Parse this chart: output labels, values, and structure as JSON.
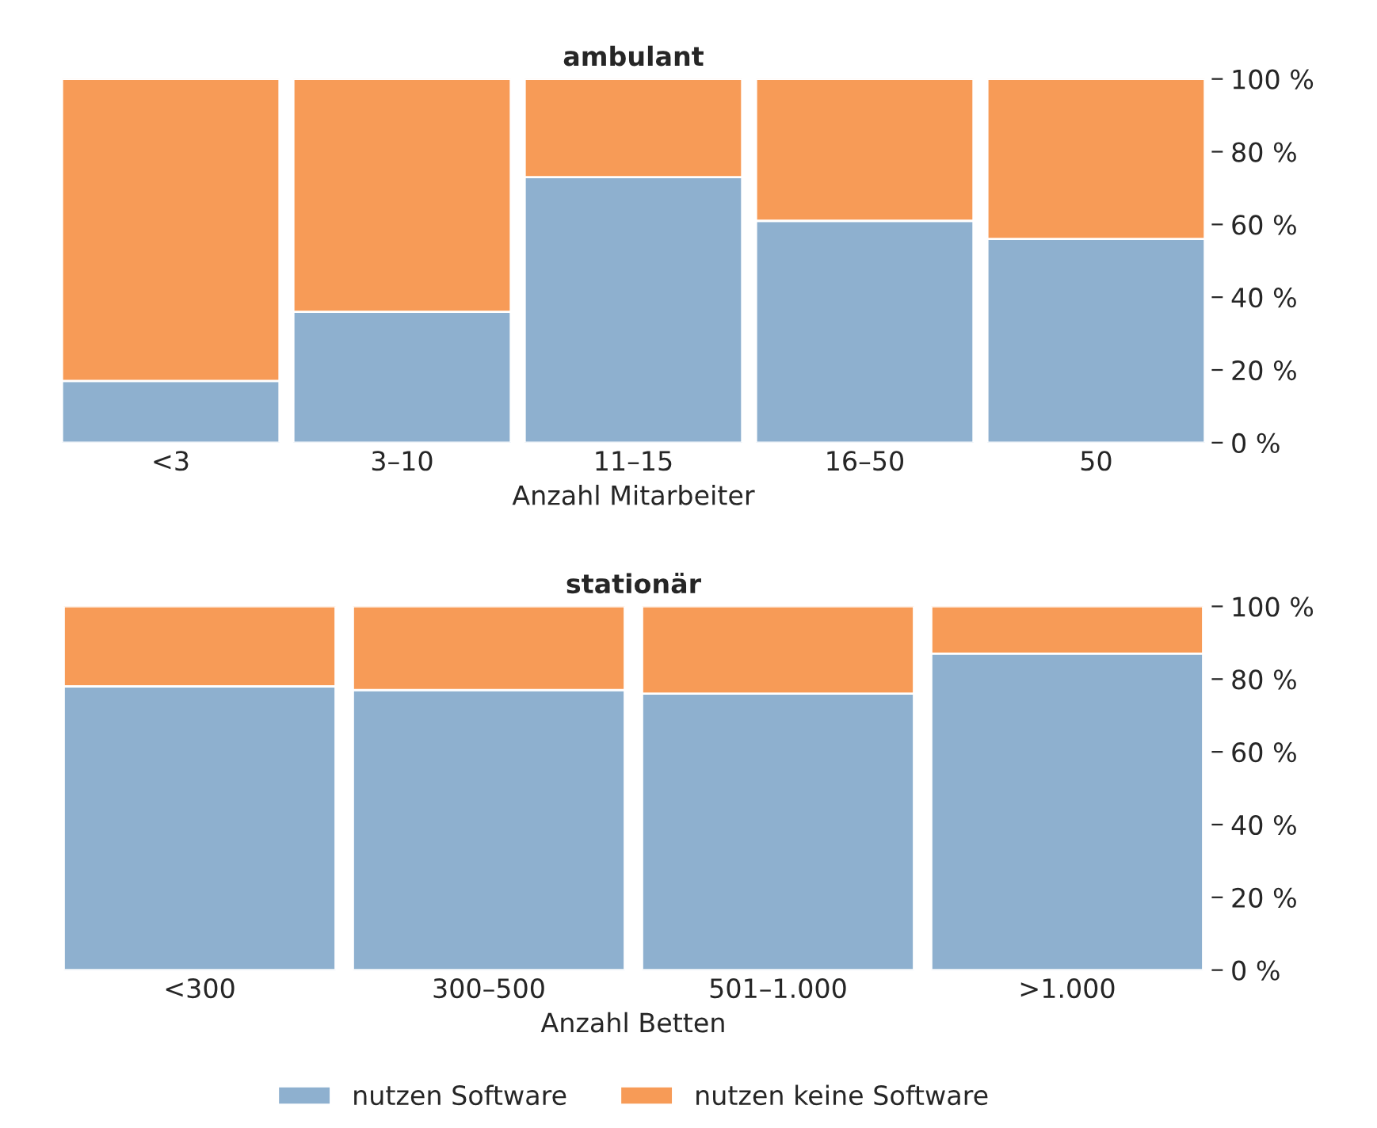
{
  "chart_data": [
    {
      "type": "bar",
      "title": "ambulant",
      "xlabel": "Anzahl Mitarbeiter",
      "categories": [
        "<3",
        "3–10",
        "11–15",
        "16–50",
        "50"
      ],
      "stacked": true,
      "series": [
        {
          "color": "#8eb0cf",
          "values": [
            17,
            36,
            73,
            61,
            56
          ]
        },
        {
          "color": "#f79b57",
          "values": [
            83,
            64,
            27,
            39,
            44
          ]
        }
      ],
      "ylim": [
        0,
        100
      ],
      "yticks": [
        {
          "value": 0,
          "label": "0 %"
        },
        {
          "value": 20,
          "label": "20 %"
        },
        {
          "value": 40,
          "label": "40 %"
        },
        {
          "value": 60,
          "label": "60 %"
        },
        {
          "value": 80,
          "label": "80 %"
        },
        {
          "value": 100,
          "label": "100 %"
        }
      ],
      "grid": false,
      "legend": false
    },
    {
      "type": "bar",
      "title": "stationär",
      "xlabel": "Anzahl Betten",
      "categories": [
        "<300",
        "300–500",
        "501–1.000",
        ">1.000"
      ],
      "stacked": true,
      "series": [
        {
          "name": "nutzen Software",
          "color": "#8eb0cf",
          "values": [
            78,
            77,
            76,
            87
          ]
        },
        {
          "name": "nutzen keine Software",
          "color": "#f79b57",
          "values": [
            22,
            23,
            24,
            13
          ]
        }
      ],
      "ylim": [
        0,
        100
      ],
      "yticks": [
        {
          "value": 0,
          "label": "0 %"
        },
        {
          "value": 20,
          "label": "20 %"
        },
        {
          "value": 40,
          "label": "40 %"
        },
        {
          "value": 60,
          "label": "60 %"
        },
        {
          "value": 80,
          "label": "80 %"
        },
        {
          "value": 100,
          "label": "100 %"
        }
      ],
      "grid": false,
      "legend": "bottom"
    }
  ]
}
